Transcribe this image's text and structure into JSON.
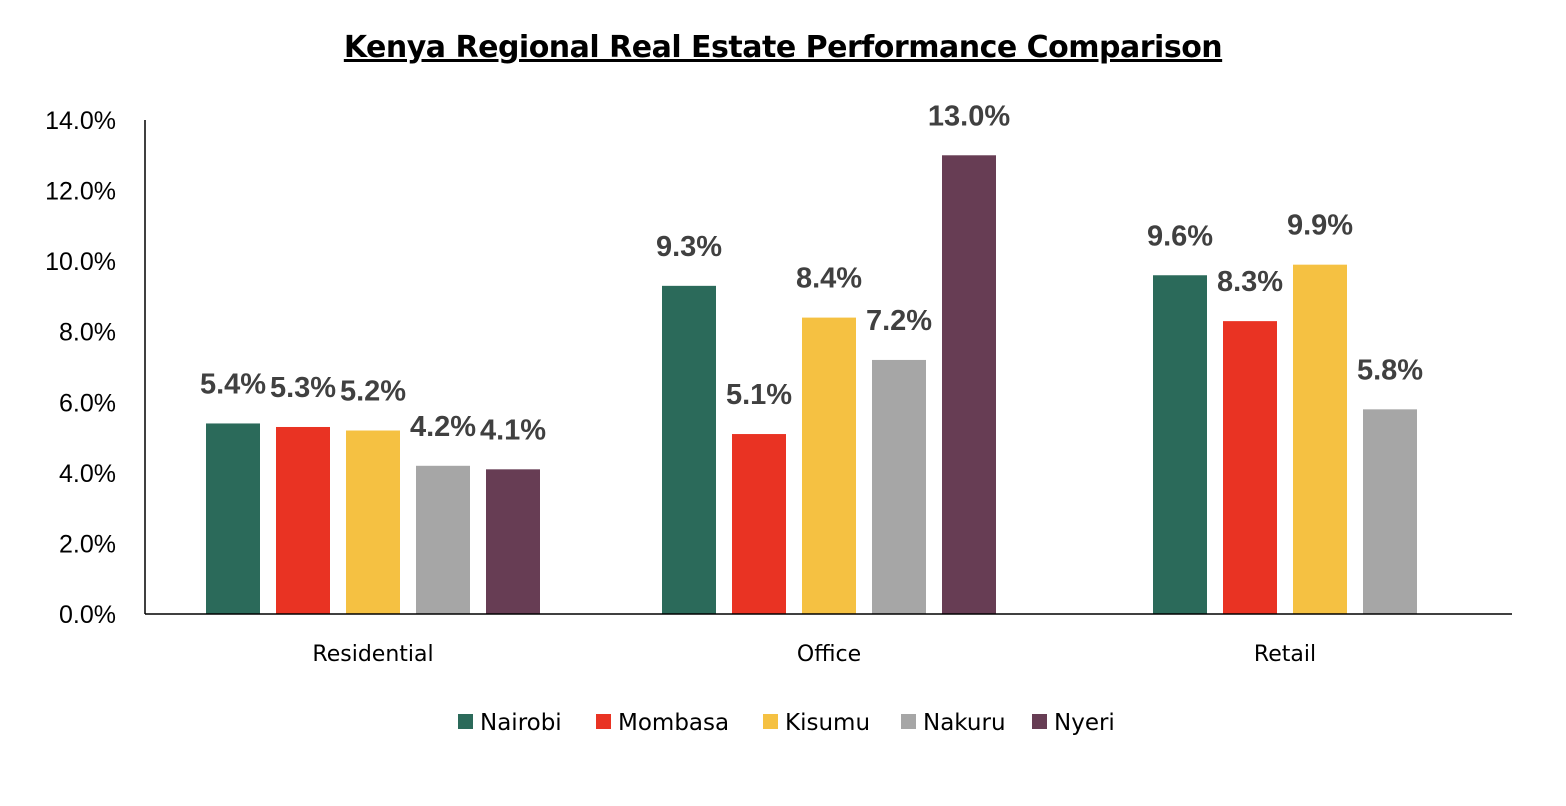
{
  "chart_data": {
    "type": "bar",
    "title": "Kenya Regional Real Estate Performance Comparison",
    "xlabel": "",
    "ylabel": "",
    "categories": [
      "Residential",
      "Office",
      "Retail"
    ],
    "ylim": [
      0,
      14
    ],
    "yticks": [
      "0.0%",
      "2.0%",
      "4.0%",
      "6.0%",
      "8.0%",
      "10.0%",
      "12.0%",
      "14.0%"
    ],
    "grid": false,
    "legend_position": "bottom",
    "series": [
      {
        "name": "Nairobi",
        "color": "#2b6a5a",
        "values": [
          5.4,
          9.3,
          9.6
        ],
        "labels": [
          "5.4%",
          "9.3%",
          "9.6%"
        ]
      },
      {
        "name": "Mombasa",
        "color": "#e93323",
        "values": [
          5.3,
          5.1,
          8.3
        ],
        "labels": [
          "5.3%",
          "5.1%",
          "8.3%"
        ]
      },
      {
        "name": "Kisumu",
        "color": "#f5c142",
        "values": [
          5.2,
          8.4,
          9.9
        ],
        "labels": [
          "5.2%",
          "8.4%",
          "9.9%"
        ]
      },
      {
        "name": "Nakuru",
        "color": "#a6a6a6",
        "values": [
          4.2,
          7.2,
          5.8
        ],
        "labels": [
          "4.2%",
          "7.2%",
          "5.8%"
        ]
      },
      {
        "name": "Nyeri",
        "color": "#673d54",
        "values": [
          4.1,
          13.0,
          null
        ],
        "labels": [
          "4.1%",
          "13.0%",
          null
        ]
      }
    ]
  }
}
